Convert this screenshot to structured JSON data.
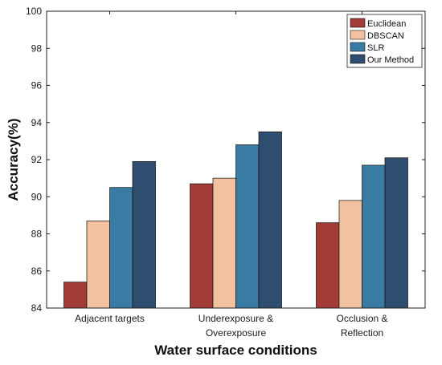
{
  "chart_data": {
    "type": "bar",
    "title": "",
    "xlabel": "Water surface conditions",
    "ylabel": "Accuracy(%)",
    "ylim": [
      84,
      100
    ],
    "yticks": [
      "84",
      "86",
      "88",
      "90",
      "92",
      "94",
      "96",
      "98",
      "100"
    ],
    "categories": [
      [
        "Adjacent targets"
      ],
      [
        "Underexposure &",
        "Overexposure"
      ],
      [
        "Occlusion &",
        "Reflection"
      ]
    ],
    "series": [
      {
        "name": "Euclidean",
        "color": "#a33b36",
        "values": [
          85.4,
          90.7,
          88.6
        ]
      },
      {
        "name": "DBSCAN",
        "color": "#f1c1a0",
        "values": [
          88.7,
          91.0,
          89.8
        ]
      },
      {
        "name": "SLR",
        "color": "#3a7ba4",
        "values": [
          90.5,
          92.8,
          91.7
        ]
      },
      {
        "name": "Our Method",
        "color": "#2f4d6e",
        "values": [
          91.9,
          93.5,
          92.1
        ]
      }
    ],
    "grid": false,
    "legend_position": "top-right"
  }
}
